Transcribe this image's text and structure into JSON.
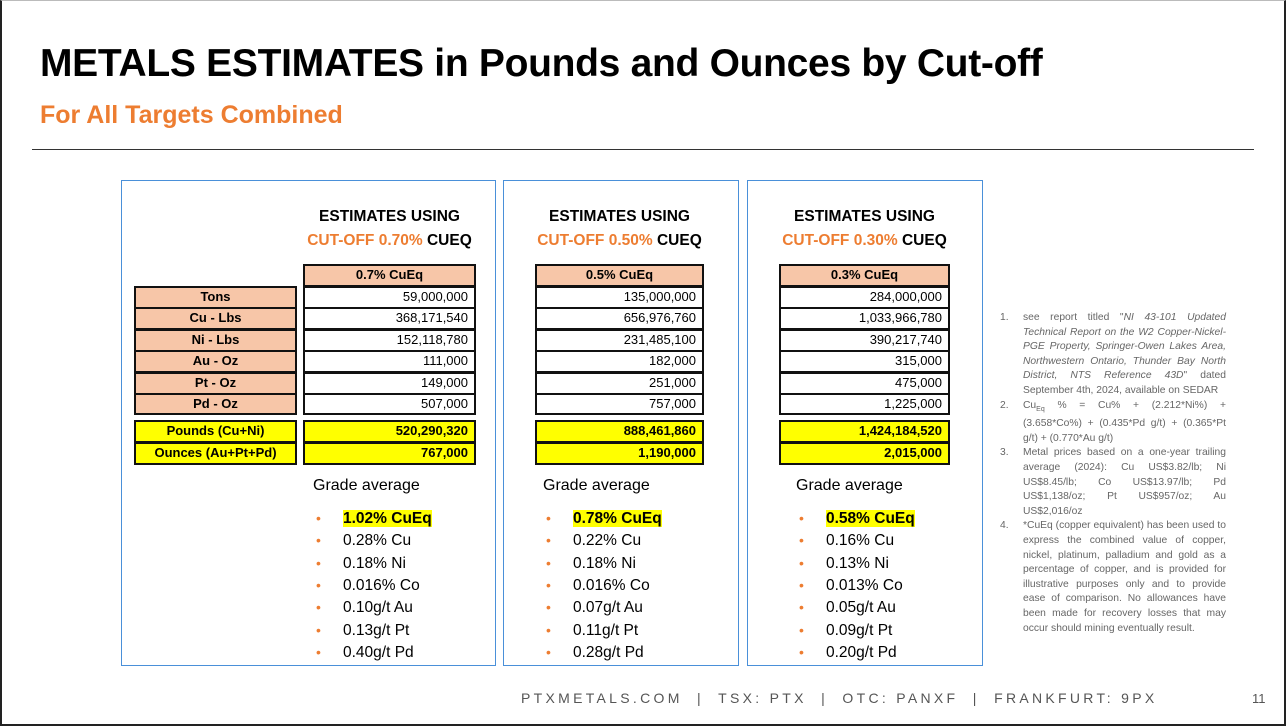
{
  "title": "METALS ESTIMATES in Pounds and Ounces by Cut-off",
  "subtitle": "For All Targets Combined",
  "row_labels": [
    "Tons",
    "Cu - Lbs",
    "Ni - Lbs",
    "Au - Oz",
    "Pt - Oz",
    "Pd - Oz"
  ],
  "total_labels": [
    "Pounds (Cu+Ni)",
    "Ounces (Au+Pt+Pd)"
  ],
  "grade_label": "Grade average",
  "panels": [
    {
      "title_line1": "ESTIMATES USING",
      "cutoff": "CUT-OFF 0.70%",
      "unit": "CUEQ",
      "header": "0.7% CuEq",
      "values": [
        "59,000,000",
        "368,171,540",
        "152,118,780",
        "111,000",
        "149,000",
        "507,000"
      ],
      "totals": [
        "520,290,320",
        "767,000"
      ],
      "grades": [
        "1.02% CuEq",
        "0.28% Cu",
        "0.18% Ni",
        "0.016% Co",
        "0.10g/t Au",
        "0.13g/t Pt",
        "0.40g/t Pd"
      ]
    },
    {
      "title_line1": "ESTIMATES USING",
      "cutoff": "CUT-OFF 0.50%",
      "unit": "CUEQ",
      "header": "0.5% CuEq",
      "values": [
        "135,000,000",
        "656,976,760",
        "231,485,100",
        "182,000",
        "251,000",
        "757,000"
      ],
      "totals": [
        "888,461,860",
        "1,190,000"
      ],
      "grades": [
        "0.78% CuEq",
        "0.22% Cu",
        "0.18% Ni",
        "0.016% Co",
        "0.07g/t Au",
        "0.11g/t Pt",
        "0.28g/t Pd"
      ]
    },
    {
      "title_line1": "ESTIMATES USING",
      "cutoff": "CUT-OFF 0.30%",
      "unit": "CUEQ",
      "header": "0.3% CuEq",
      "values": [
        "284,000,000",
        "1,033,966,780",
        "390,217,740",
        "315,000",
        "475,000",
        "1,225,000"
      ],
      "totals": [
        "1,424,184,520",
        "2,015,000"
      ],
      "grades": [
        "0.58% CuEq",
        "0.16% Cu",
        "0.13% Ni",
        "0.013% Co",
        "0.05g/t Au",
        "0.09g/t Pt",
        "0.20g/t Pd"
      ]
    }
  ],
  "notes": [
    {
      "n": "1.",
      "pre": "see report titled \"",
      "italic": "NI 43-101 Updated Technical Report on the W2 Copper-Nickel-PGE Property, Springer-Owen Lakes Area, Northwestern Ontario, Thunder Bay North District, NTS Reference 43D",
      "post": "\" dated September 4th, 2024, available on SEDAR"
    },
    {
      "n": "2.",
      "pre": "Cu",
      "sub": "Eq",
      "post": " % = Cu% + (2.212*Ni%) + (3.658*Co%) + (0.435*Pd g/t) + (0.365*Pt g/t) + (0.770*Au g/t)"
    },
    {
      "n": "3.",
      "post": "Metal prices based on a one-year trailing average (2024): Cu US$3.82/lb; Ni US$8.45/lb; Co US$13.97/lb; Pd US$1,138/oz; Pt US$957/oz; Au US$2,016/oz"
    },
    {
      "n": "4.",
      "post": "*CuEq (copper equivalent) has been used to express the combined value of copper, nickel, platinum, palladium and gold as a percentage of copper, and is provided for illustrative purposes only and to provide ease of comparison. No allowances have been made for recovery losses that may occur should mining eventually result."
    }
  ],
  "footer": "PTXMETALS.COM  |  TSX: PTX  |  OTC: PANXF  |  FRANKFURT: 9PX",
  "page_number": "11"
}
